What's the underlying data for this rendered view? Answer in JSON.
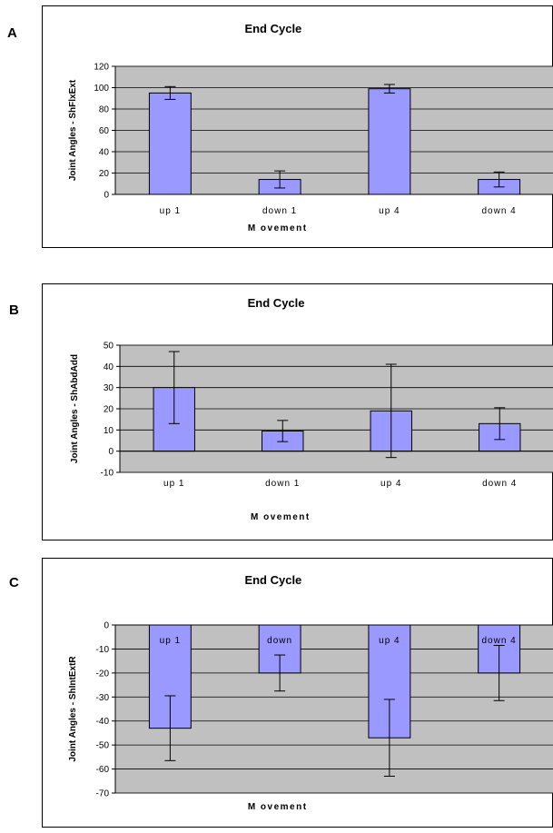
{
  "chart_data": [
    {
      "panel": "A",
      "type": "bar",
      "title": "End Cycle",
      "xlabel": "M ovement",
      "ylabel": "Joint Angles - ShFlxExt",
      "categories": [
        "up 1",
        "down 1",
        "up 4",
        "down 4"
      ],
      "values": [
        95,
        14,
        99,
        14
      ],
      "errors": [
        6,
        8,
        4,
        7
      ],
      "ylim": [
        0,
        120
      ],
      "yticks": [
        0,
        20,
        40,
        60,
        80,
        100,
        120
      ],
      "grid": true,
      "bar_color": "#9999ff",
      "plot_bg": "#c0c0c0"
    },
    {
      "panel": "B",
      "type": "bar",
      "title": "End Cycle",
      "xlabel": "M ovement",
      "ylabel": "Joint Angles - ShAbdAdd",
      "categories": [
        "up 1",
        "down 1",
        "up 4",
        "down 4"
      ],
      "values": [
        30,
        9.5,
        19,
        13
      ],
      "errors": [
        17,
        5,
        22,
        7.5
      ],
      "ylim": [
        -10,
        50
      ],
      "yticks": [
        -10,
        0,
        10,
        20,
        30,
        40,
        50
      ],
      "grid": true,
      "bar_color": "#9999ff",
      "plot_bg": "#c0c0c0"
    },
    {
      "panel": "C",
      "type": "bar",
      "title": "End Cycle",
      "xlabel": "M ovement",
      "ylabel": "Joint Angles - ShIntExtR",
      "categories": [
        "up 1",
        "down",
        "up 4",
        "down 4"
      ],
      "values": [
        -43,
        -20,
        -47,
        -20
      ],
      "errors": [
        13.5,
        7.5,
        16,
        11.5
      ],
      "ylim": [
        -70,
        0
      ],
      "yticks": [
        -70,
        -60,
        -50,
        -40,
        -30,
        -20,
        -10,
        0
      ],
      "grid": true,
      "bar_color": "#9999ff",
      "plot_bg": "#c0c0c0"
    }
  ]
}
